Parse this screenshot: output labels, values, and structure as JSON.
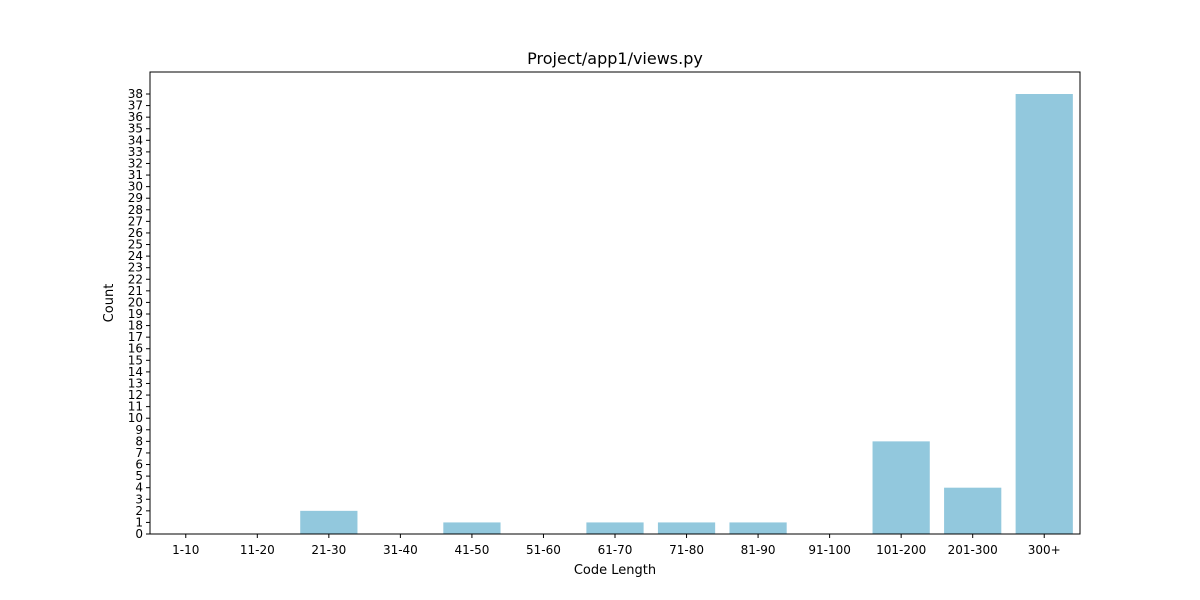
{
  "chart_data": {
    "type": "bar",
    "title": "Project/app1/views.py",
    "xlabel": "Code Length",
    "ylabel": "Count",
    "categories": [
      "1-10",
      "11-20",
      "21-30",
      "31-40",
      "41-50",
      "51-60",
      "61-70",
      "71-80",
      "81-90",
      "91-100",
      "101-200",
      "201-300",
      "300+"
    ],
    "values": [
      0,
      0,
      2,
      0,
      1,
      0,
      1,
      1,
      1,
      0,
      8,
      4,
      38
    ],
    "ylim": [
      0,
      39.9
    ],
    "yticks": [
      0,
      1,
      2,
      3,
      4,
      5,
      6,
      7,
      8,
      9,
      10,
      11,
      12,
      13,
      14,
      15,
      16,
      17,
      18,
      19,
      20,
      21,
      22,
      23,
      24,
      25,
      26,
      27,
      28,
      29,
      30,
      31,
      32,
      33,
      34,
      35,
      36,
      37,
      38
    ],
    "grid": false,
    "legend": "none",
    "bar_color": "#92c8dd",
    "axis_color": "#000000"
  }
}
